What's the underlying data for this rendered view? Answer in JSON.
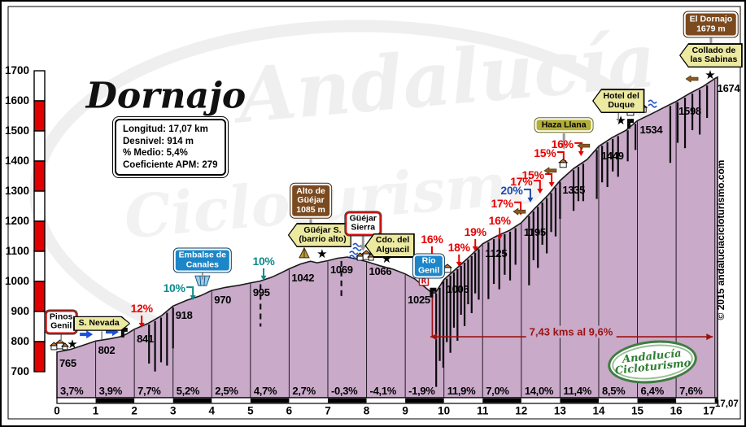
{
  "title": "Dornajo",
  "infobox": {
    "lines": [
      "Longitud: 17,07 km",
      "Desnivel: 914 m",
      "% Medio: 5,4%",
      "Coeficiente APM: 279"
    ]
  },
  "copyright": "© 2015 andaluciacicloturismo.com",
  "logo": {
    "line1": "Andalucía",
    "line2": "Cicloturismo"
  },
  "watermark": {
    "line1": "Andalucía",
    "line2": "Cicloturismo"
  },
  "annotation": {
    "text": "7,43 kms al 9,6%",
    "from_km": 9.65,
    "to_km": 16.95,
    "at_elev": 816,
    "drop_km": 9.7,
    "drop_from_elev": 960,
    "color": "#9a1212"
  },
  "colors": {
    "profile_fill": "#c9aac9",
    "profile_stroke": "#1a1a1a",
    "red": "#e60000",
    "teal": "#0e8b8b",
    "blue": "#2048a8",
    "dark_red": "#9a1212",
    "thermo_red": "#e00000",
    "sign_brown": "#7b4a1f",
    "sign_yellow": "#ece9a0",
    "sign_blue": "#1c86c8",
    "sign_olive": "#b2ae3a",
    "gray_arrow": "#999999"
  },
  "chart_data": {
    "type": "area",
    "title": "Dornajo",
    "x_unit": "km",
    "y_unit": "m",
    "xlim": [
      0,
      17.07
    ],
    "ylim": [
      700,
      1700
    ],
    "y_ticks": [
      1700,
      1600,
      1500,
      1400,
      1300,
      1200,
      1100,
      1000,
      900,
      800,
      700
    ],
    "x_ticks": [
      0,
      1,
      2,
      3,
      4,
      5,
      6,
      7,
      8,
      9,
      10,
      11,
      12,
      13,
      14,
      15,
      16,
      17
    ],
    "x_end_label": "17,07",
    "profile": [
      [
        0,
        765
      ],
      [
        0.35,
        774
      ],
      [
        0.7,
        789
      ],
      [
        1,
        802
      ],
      [
        1.35,
        809
      ],
      [
        1.62,
        816
      ],
      [
        1.78,
        824
      ],
      [
        2,
        841
      ],
      [
        2.35,
        860
      ],
      [
        2.7,
        886
      ],
      [
        3,
        918
      ],
      [
        3.35,
        937
      ],
      [
        3.7,
        952
      ],
      [
        4,
        970
      ],
      [
        4.35,
        980
      ],
      [
        4.7,
        987
      ],
      [
        5,
        995
      ],
      [
        5.25,
        1001
      ],
      [
        5.55,
        1014
      ],
      [
        5.8,
        1029
      ],
      [
        6,
        1042
      ],
      [
        6.3,
        1058
      ],
      [
        6.55,
        1067
      ],
      [
        6.72,
        1062
      ],
      [
        7,
        1069
      ],
      [
        7.25,
        1077
      ],
      [
        7.5,
        1081
      ],
      [
        7.75,
        1074
      ],
      [
        8,
        1066
      ],
      [
        8.35,
        1052
      ],
      [
        8.7,
        1040
      ],
      [
        9,
        1025
      ],
      [
        9.25,
        1008
      ],
      [
        9.5,
        982
      ],
      [
        9.68,
        963
      ],
      [
        9.78,
        962
      ],
      [
        10,
        1006
      ],
      [
        10.35,
        1046
      ],
      [
        10.7,
        1087
      ],
      [
        11,
        1125
      ],
      [
        11.35,
        1150
      ],
      [
        11.7,
        1170
      ],
      [
        12,
        1195
      ],
      [
        12.35,
        1243
      ],
      [
        12.7,
        1288
      ],
      [
        13,
        1335
      ],
      [
        13.35,
        1375
      ],
      [
        13.7,
        1405
      ],
      [
        14,
        1449
      ],
      [
        14.35,
        1478
      ],
      [
        14.7,
        1502
      ],
      [
        15,
        1534
      ],
      [
        15.35,
        1556
      ],
      [
        15.7,
        1579
      ],
      [
        16,
        1598
      ],
      [
        16.35,
        1625
      ],
      [
        16.7,
        1648
      ],
      [
        17,
        1674
      ],
      [
        17.07,
        1679
      ]
    ],
    "km_marks": [
      {
        "km": 0,
        "label": "765",
        "elev": 765,
        "dy": 6
      },
      {
        "km": 1,
        "label": "802",
        "elev": 802
      },
      {
        "km": 2,
        "label": "841",
        "elev": 841
      },
      {
        "km": 3,
        "label": "918",
        "elev": 918
      },
      {
        "km": 4,
        "label": "970",
        "elev": 970
      },
      {
        "km": 5,
        "label": "995",
        "elev": 995
      },
      {
        "km": 6,
        "label": "1042",
        "elev": 1042
      },
      {
        "km": 7,
        "label": "1069",
        "elev": 1069
      },
      {
        "km": 8,
        "label": "1066",
        "elev": 1066
      },
      {
        "km": 9,
        "label": "1025",
        "elev": 1025,
        "dy": 24
      },
      {
        "km": 10,
        "label": "1006",
        "elev": 1006
      },
      {
        "km": 11,
        "label": "1125",
        "elev": 1125
      },
      {
        "km": 12,
        "label": "1195",
        "elev": 1195
      },
      {
        "km": 13,
        "label": "1335",
        "elev": 1335
      },
      {
        "km": 14,
        "label": "1449",
        "elev": 1449
      },
      {
        "km": 15,
        "label": "1534",
        "elev": 1534
      },
      {
        "km": 16,
        "label": "1598",
        "elev": 1598
      },
      {
        "km": 17,
        "label": "1674",
        "elev": 1674
      }
    ],
    "segment_gradients": [
      {
        "from": 0,
        "to": 1,
        "label": "3,7%"
      },
      {
        "from": 1,
        "to": 2,
        "label": "3,9%"
      },
      {
        "from": 2,
        "to": 3,
        "label": "7,7%"
      },
      {
        "from": 3,
        "to": 4,
        "label": "5,2%"
      },
      {
        "from": 4,
        "to": 5,
        "label": "2,5%"
      },
      {
        "from": 5,
        "to": 6,
        "label": "4,7%"
      },
      {
        "from": 6,
        "to": 7,
        "label": "2,7%"
      },
      {
        "from": 7,
        "to": 8,
        "label": "-0,3%"
      },
      {
        "from": 8,
        "to": 9,
        "label": "-4,1%"
      },
      {
        "from": 9,
        "to": 10,
        "label": "-1,9%"
      },
      {
        "from": 10,
        "to": 11,
        "label": "11,9%"
      },
      {
        "from": 11,
        "to": 12,
        "label": "7,0%"
      },
      {
        "from": 12,
        "to": 13,
        "label": "14,0%"
      },
      {
        "from": 13,
        "to": 14,
        "label": "11,4%"
      },
      {
        "from": 14,
        "to": 15,
        "label": "8,5%"
      },
      {
        "from": 15,
        "to": 16,
        "label": "6,4%"
      },
      {
        "from": 16,
        "to": 17.07,
        "label": "7,6%"
      }
    ],
    "gradient_callouts": [
      {
        "label": "12%",
        "color": "red",
        "km": 2.19,
        "elev": 911,
        "arrow": "down"
      },
      {
        "label": "10%",
        "color": "teal",
        "km": 3.03,
        "elev": 978,
        "arrow": "elbow"
      },
      {
        "label": "10%",
        "color": "teal",
        "km": 5.34,
        "elev": 1068,
        "arrow": "down"
      },
      {
        "label": "16%",
        "color": "red",
        "km": 9.69,
        "elev": 1141,
        "arrow": "down"
      },
      {
        "label": "18%",
        "color": "red",
        "km": 10.39,
        "elev": 1114,
        "arrow": "down"
      },
      {
        "label": "19%",
        "color": "red",
        "km": 10.81,
        "elev": 1165,
        "arrow": "down"
      },
      {
        "label": "16%",
        "color": "red",
        "km": 11.44,
        "elev": 1203,
        "arrow": "down"
      },
      {
        "label": "17%",
        "color": "red",
        "km": 11.5,
        "elev": 1260,
        "arrow": "elbow"
      },
      {
        "label": "20%",
        "color": "blue",
        "km": 11.75,
        "elev": 1303,
        "arrow": "elbow"
      },
      {
        "label": "17%",
        "color": "red",
        "km": 12.0,
        "elev": 1332,
        "arrow": "elbow"
      },
      {
        "label": "15%",
        "color": "red",
        "km": 12.3,
        "elev": 1354,
        "arrow": "elbow"
      },
      {
        "label": "15%",
        "color": "red",
        "km": 12.61,
        "elev": 1427,
        "arrow": "elbow"
      },
      {
        "label": "16%",
        "color": "red",
        "km": 13.06,
        "elev": 1457,
        "arrow": "elbow"
      }
    ],
    "signs": [
      {
        "id": "pinos-genil",
        "style": "white-red",
        "lines": [
          "Pinos",
          "Genil"
        ],
        "km": 0.11,
        "elev": 865,
        "pointer": "stick",
        "plen": 10
      },
      {
        "id": "s-nevada",
        "style": "yellow-right",
        "lines": [
          "S. Nevada"
        ],
        "km": 1.16,
        "elev": 860,
        "pointer": "stick",
        "plen": 10
      },
      {
        "id": "embalse-de-canales",
        "style": "blue",
        "lines": [
          "Embalse de",
          "Canales"
        ],
        "km": 3.76,
        "elev": 1070,
        "pointer": "stick",
        "plen": 9
      },
      {
        "id": "alto-de-guejar",
        "style": "brown",
        "lines": [
          "Alto de",
          "Güéjar",
          "1085 m"
        ],
        "km": 6.56,
        "elev": 1268,
        "pointer": "arrow",
        "plen": 13
      },
      {
        "id": "guejar-s-barrio-alto",
        "style": "yellow-left",
        "lines": [
          "Güéjar S.",
          "(barrio alto)"
        ],
        "km": 6.79,
        "elev": 1154
      },
      {
        "id": "guejar-sierra",
        "style": "white-red",
        "lines": [
          "Güéjar",
          "Sierra"
        ],
        "km": 7.91,
        "elev": 1192,
        "pointer": "arrow",
        "plen": 12
      },
      {
        "id": "cdo-del-alguacil",
        "style": "yellow-left",
        "lines": [
          "Cdo. del",
          "Alguacil"
        ],
        "km": 8.6,
        "elev": 1119
      },
      {
        "id": "rio-genil",
        "style": "blue",
        "lines": [
          "Río",
          "Genil"
        ],
        "km": 9.61,
        "elev": 1051
      },
      {
        "id": "haza-llana",
        "style": "olive",
        "lines": [
          "Haza Llana"
        ],
        "km": 13.1,
        "elev": 1519,
        "pointer": "arrow",
        "plen": 14
      },
      {
        "id": "hotel-del-duque",
        "style": "yellow-left",
        "lines": [
          "Hotel del",
          "Duque"
        ],
        "km": 14.51,
        "elev": 1600,
        "pointer": "stick",
        "plen": 11
      },
      {
        "id": "el-dornajo",
        "style": "brown",
        "lines": [
          "El Dornajo",
          "1679 m"
        ],
        "km": 16.9,
        "elev": 1854,
        "pointer": "arrow",
        "plen": 13
      },
      {
        "id": "collado-de-las-sabinas",
        "style": "yellow-left",
        "lines": [
          "Collado de",
          "las Sabinas"
        ],
        "km": 16.9,
        "elev": 1751
      }
    ],
    "icons": [
      {
        "type": "houses",
        "km": 0.04,
        "elev": 784
      },
      {
        "type": "star",
        "km": 0.4,
        "elev": 792
      },
      {
        "type": "barrow",
        "km": 0.76,
        "elev": 824
      },
      {
        "type": "barrow",
        "km": 1.43,
        "elev": 832
      },
      {
        "type": "bend",
        "km": 1.72,
        "elev": 830
      },
      {
        "type": "dam",
        "km": 3.76,
        "elev": 1002
      },
      {
        "type": "tent",
        "km": 6.39,
        "elev": 1095
      },
      {
        "type": "star",
        "km": 6.85,
        "elev": 1092
      },
      {
        "type": "fount",
        "km": 7.76,
        "elev": 1113
      },
      {
        "type": "fount",
        "km": 7.67,
        "elev": 1087
      },
      {
        "type": "houses",
        "km": 7.95,
        "elev": 1081
      },
      {
        "type": "star",
        "km": 8.52,
        "elev": 1076
      },
      {
        "type": "rest",
        "km": 9.48,
        "elev": 1003
      },
      {
        "type": "bend",
        "km": 9.7,
        "elev": 963
      },
      {
        "type": "house",
        "km": 10.09,
        "elev": 1038
      },
      {
        "type": "post",
        "km": 11.96,
        "elev": 1232
      },
      {
        "type": "post",
        "km": 12.76,
        "elev": 1368
      },
      {
        "type": "house",
        "km": 13.08,
        "elev": 1387
      },
      {
        "type": "post",
        "km": 13.62,
        "elev": 1451
      },
      {
        "type": "star",
        "km": 14.57,
        "elev": 1535
      },
      {
        "type": "bend",
        "km": 14.8,
        "elev": 1524
      },
      {
        "type": "house",
        "km": 14.82,
        "elev": 1560
      },
      {
        "type": "house",
        "km": 15.14,
        "elev": 1570
      },
      {
        "type": "fount",
        "km": 15.39,
        "elev": 1589
      },
      {
        "type": "post",
        "km": 16.42,
        "elev": 1673
      },
      {
        "type": "star",
        "km": 16.88,
        "elev": 1687
      }
    ],
    "hatch_groups": [
      {
        "from": 2.38,
        "to": 3.0,
        "n": 5,
        "len": [
          48,
          62,
          55,
          65,
          50
        ]
      },
      {
        "from": 9.8,
        "to": 10.9,
        "n": 13,
        "len": [
          115,
          90,
          105,
          78,
          95,
          68,
          88,
          60,
          78,
          55,
          70,
          50,
          62
        ]
      },
      {
        "from": 11.15,
        "to": 11.85,
        "n": 6,
        "len": [
          70,
          55,
          65,
          50,
          60,
          45
        ]
      },
      {
        "from": 12.2,
        "to": 13.0,
        "n": 8,
        "len": [
          85,
          60,
          75,
          52,
          68,
          48,
          60,
          45
        ]
      },
      {
        "from": 13.35,
        "to": 13.6,
        "n": 3,
        "len": [
          50,
          42,
          46
        ]
      },
      {
        "from": 13.95,
        "to": 14.5,
        "n": 5,
        "len": [
          60,
          45,
          55,
          40,
          50
        ]
      },
      {
        "from": 14.75,
        "to": 14.95,
        "n": 2,
        "len": [
          38,
          32
        ]
      },
      {
        "from": 15.85,
        "to": 16.8,
        "n": 6,
        "len": [
          70,
          50,
          62,
          45,
          55,
          40
        ]
      }
    ],
    "dashed_drops": [
      {
        "km": 5.26,
        "len": 52
      },
      {
        "km": 7.35,
        "len": 48
      }
    ]
  }
}
